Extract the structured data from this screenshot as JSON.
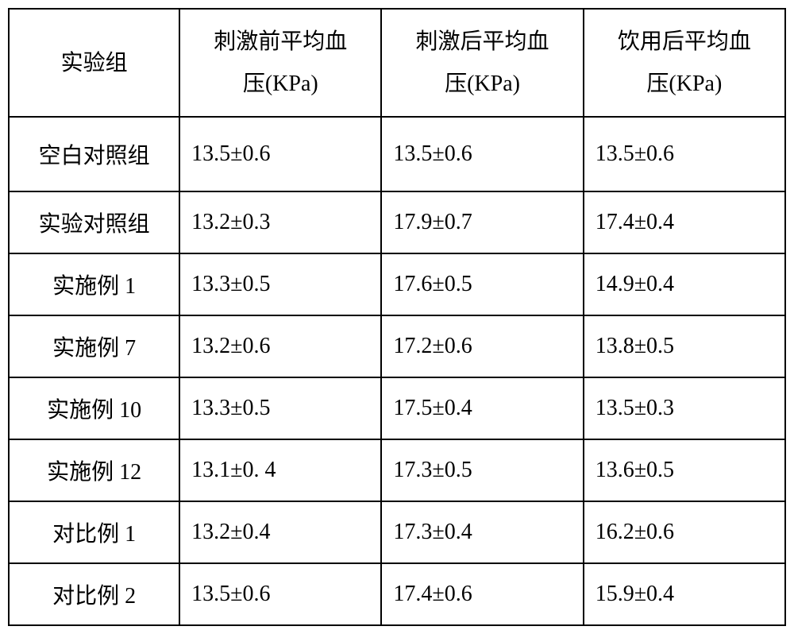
{
  "table": {
    "type": "table",
    "background_color": "#ffffff",
    "border_color": "#000000",
    "border_width": 2,
    "font_family": "SimSun",
    "header_fontsize": 28,
    "cell_fontsize": 28,
    "text_color": "#000000",
    "columns": [
      {
        "label": "实验组",
        "width_pct": 22,
        "align": "center"
      },
      {
        "label": "刺激前平均血压(KPa)",
        "width_pct": 26,
        "align": "left"
      },
      {
        "label": "刺激后平均血压(KPa)",
        "width_pct": 26,
        "align": "left"
      },
      {
        "label": "饮用后平均血压(KPa)",
        "width_pct": 26,
        "align": "left"
      }
    ],
    "header_line1": [
      "实验组",
      "刺激前平均血",
      "刺激后平均血",
      "饮用后平均血"
    ],
    "header_line2": [
      "",
      "压(KPa)",
      "压(KPa)",
      "压(KPa)"
    ],
    "rows": [
      {
        "label": "空白对照组",
        "values": [
          "13.5±0.6",
          "13.5±0.6",
          "13.5±0.6"
        ],
        "tall": true
      },
      {
        "label": "实验对照组",
        "values": [
          "13.2±0.3",
          "17.9±0.7",
          "17.4±0.4"
        ],
        "tall": false
      },
      {
        "label": "实施例 1",
        "values": [
          "13.3±0.5",
          "17.6±0.5",
          "14.9±0.4"
        ],
        "tall": false
      },
      {
        "label": "实施例 7",
        "values": [
          "13.2±0.6",
          "17.2±0.6",
          "13.8±0.5"
        ],
        "tall": false
      },
      {
        "label": "实施例 10",
        "values": [
          "13.3±0.5",
          "17.5±0.4",
          "13.5±0.3"
        ],
        "tall": false
      },
      {
        "label": "实施例 12",
        "values": [
          "13.1±0. 4",
          "17.3±0.5",
          "13.6±0.5"
        ],
        "tall": false
      },
      {
        "label": "对比例 1",
        "values": [
          "13.2±0.4",
          "17.3±0.4",
          "16.2±0.6"
        ],
        "tall": false
      },
      {
        "label": "对比例 2",
        "values": [
          "13.5±0.6",
          "17.4±0.6",
          "15.9±0.4"
        ],
        "tall": false
      }
    ]
  }
}
